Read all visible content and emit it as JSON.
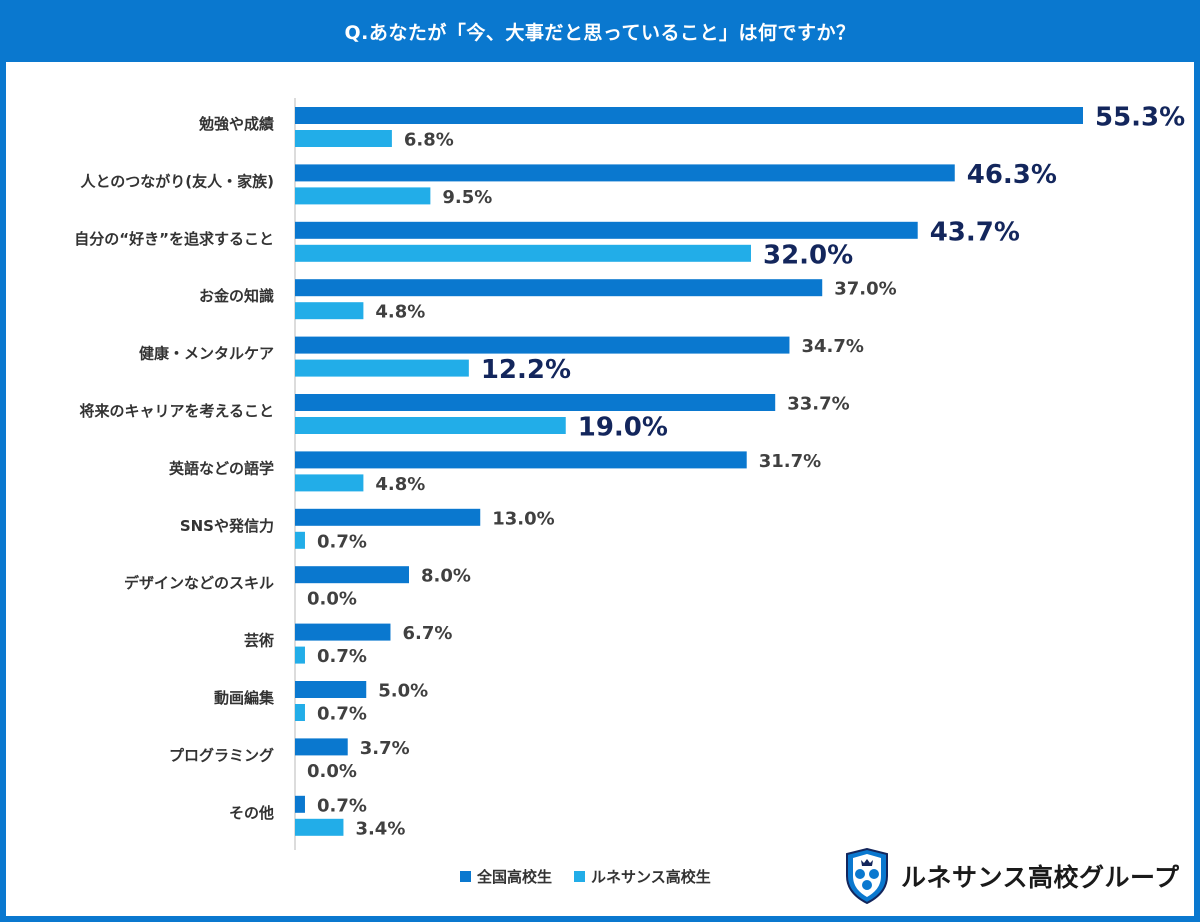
{
  "title": "Q.あなたが「今、大事だと思っていること」は何ですか？",
  "colors": {
    "header_bg": "#0a78cf",
    "series_national": "#0a78cf",
    "series_renaissance": "#22ade8",
    "highlight_text": "#13265c"
  },
  "legend": {
    "items": [
      {
        "label": "全国高校生",
        "color": "#0a78cf"
      },
      {
        "label": "ルネサンス高校生",
        "color": "#22ade8"
      }
    ]
  },
  "logo": {
    "text": "ルネサンス高校グループ",
    "icon": "shield-emblem-icon"
  },
  "chart_data": {
    "type": "bar",
    "orientation": "horizontal",
    "categories": [
      "勉強や成績",
      "人とのつながり(友人・家族)",
      "自分の“好き”を追求すること",
      "お金の知識",
      "健康・メンタルケア",
      "将来のキャリアを考えること",
      "英語などの語学",
      "SNSや発信力",
      "デザインなどのスキル",
      "芸術",
      "動画編集",
      "プログラミング",
      "その他"
    ],
    "series": [
      {
        "name": "全国高校生",
        "values": [
          55.3,
          46.3,
          43.7,
          37.0,
          34.7,
          33.7,
          31.7,
          13.0,
          8.0,
          6.7,
          5.0,
          3.7,
          0.7
        ],
        "labels": [
          "55.3%",
          "46.3%",
          "43.7%",
          "37.0%",
          "34.7%",
          "33.7%",
          "31.7%",
          "13.0%",
          "8.0%",
          "6.7%",
          "5.0%",
          "3.7%",
          "0.7%"
        ],
        "highlight": [
          true,
          true,
          true,
          false,
          false,
          false,
          false,
          false,
          false,
          false,
          false,
          false,
          false
        ]
      },
      {
        "name": "ルネサンス高校生",
        "values": [
          6.8,
          9.5,
          32.0,
          4.8,
          12.2,
          19.0,
          4.8,
          0.7,
          0.0,
          0.7,
          0.7,
          0.0,
          3.4
        ],
        "labels": [
          "6.8%",
          "9.5%",
          "32.0%",
          "4.8%",
          "12.2%",
          "19.0%",
          "4.8%",
          "0.7%",
          "0.0%",
          "0.7%",
          "0.7%",
          "0.0%",
          "3.4%"
        ],
        "highlight": [
          false,
          false,
          true,
          false,
          true,
          true,
          false,
          false,
          false,
          false,
          false,
          false,
          false
        ]
      }
    ],
    "xlim": [
      0,
      55.3
    ],
    "grid": false,
    "legend_position": "bottom"
  }
}
